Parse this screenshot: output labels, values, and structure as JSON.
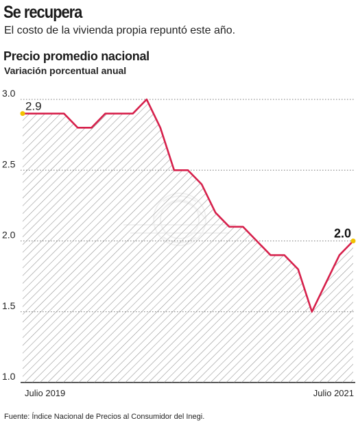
{
  "header": {
    "headline": "Se recupera",
    "subtitle": "El costo de la vivienda propia repuntó este año."
  },
  "chart_data": {
    "type": "area",
    "title": "Precio promedio nacional",
    "subtitle": "Variación porcentual anual",
    "xlabel": "",
    "ylabel": "",
    "x_tick_labels": [
      "Julio 2019",
      "Julio 2021"
    ],
    "x": [
      "Jul 2019",
      "Ago 2019",
      "Sep 2019",
      "Oct 2019",
      "Nov 2019",
      "Dic 2019",
      "Ene 2020",
      "Feb 2020",
      "Mar 2020",
      "Abr 2020",
      "May 2020",
      "Jun 2020",
      "Jul 2020",
      "Ago 2020",
      "Sep 2020",
      "Oct 2020",
      "Nov 2020",
      "Dic 2020",
      "Ene 2021",
      "Feb 2021",
      "Mar 2021",
      "Abr 2021",
      "May 2021",
      "Jun 2021",
      "Jul 2021"
    ],
    "series": [
      {
        "values": [
          2.9,
          2.9,
          2.9,
          2.9,
          2.8,
          2.8,
          2.9,
          2.9,
          2.9,
          3.0,
          2.8,
          2.5,
          2.5,
          2.4,
          2.2,
          2.1,
          2.1,
          2.0,
          1.9,
          1.9,
          1.8,
          1.5,
          1.7,
          1.9,
          2.0
        ]
      }
    ],
    "yticks": [
      "1.0",
      "1.5",
      "2.0",
      "2.5",
      "3.0"
    ],
    "ylim": [
      1.0,
      3.0
    ],
    "annotations": {
      "start": "2.9",
      "end": "2.0"
    },
    "grid": true,
    "colors": {
      "line": "#d6204b",
      "hatch": "#8c8c8c",
      "marker": "#f2c200",
      "grid": "#777777"
    }
  },
  "footer": {
    "source": "Fuente: Índice Nacional de Precios al Consumidor del Inegi."
  }
}
